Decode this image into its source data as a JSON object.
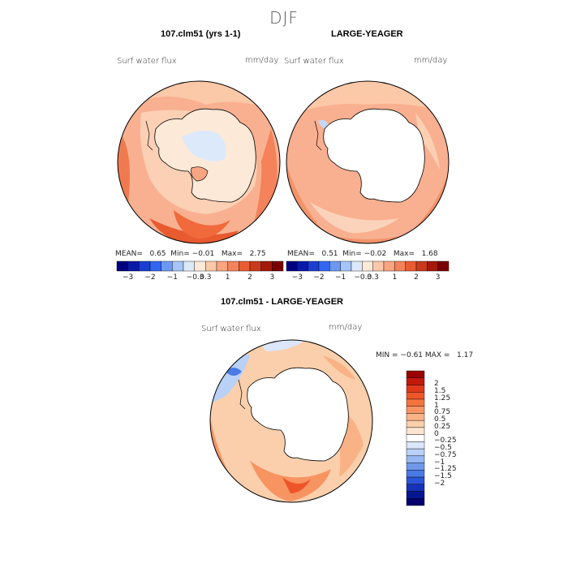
{
  "figure": {
    "title": "DJF"
  },
  "panels": [
    {
      "id": "model",
      "title": "107.clm51 (yrs 1-1)",
      "variable": "Surf water flux",
      "units": "mm/day",
      "mean_label": "MEAN=",
      "mean": "0.65",
      "min_label": "Min=",
      "min": "−0.01",
      "max_label": "Max=",
      "max": "2.75"
    },
    {
      "id": "obs",
      "title": "LARGE-YEAGER",
      "variable": "Surf water flux",
      "units": "mm/day",
      "mean_label": "MEAN=",
      "mean": "0.51",
      "min_label": "Min=",
      "min": "−0.02",
      "max_label": "Max=",
      "max": "1.68"
    },
    {
      "id": "diff",
      "title": "107.clm51 - LARGE-YEAGER",
      "variable": "Surf water flux",
      "units": "mm/day",
      "min_label": "MIN =",
      "min": "−0.61",
      "max_label": "MAX =",
      "max": "1.17"
    }
  ],
  "colorbar_top": {
    "colors": [
      "#00007f",
      "#0a1aa8",
      "#1a3fd0",
      "#3366ee",
      "#6b99f2",
      "#a6c4f7",
      "#dce9fb",
      "#fde9d8",
      "#fcc8a8",
      "#f9a582",
      "#f4825a",
      "#e85c33",
      "#c93a1c",
      "#a31a0a",
      "#7a0000"
    ],
    "tick_labels": [
      "−3",
      "−2",
      "−1",
      "−0.3",
      "0.3",
      "1",
      "2",
      "3"
    ]
  },
  "colorbar_diff": {
    "colors_top_to_bottom": [
      "#990000",
      "#c21a0a",
      "#e0391b",
      "#f0552a",
      "#f5733f",
      "#f79462",
      "#f9b285",
      "#fbcfab",
      "#fde5cf",
      "#ffffff",
      "#dbe6fb",
      "#b9d0f7",
      "#96b7f2",
      "#6f98ec",
      "#4a7ae6",
      "#2a55d8",
      "#1533b8",
      "#041690",
      "#00006e"
    ],
    "tick_labels": [
      "2",
      "1.5",
      "1.25",
      "1",
      "0.75",
      "0.5",
      "0.25",
      "0",
      "−0.25",
      "−0.5",
      "−0.75",
      "−1",
      "−1.25",
      "−1.5",
      "−2"
    ]
  }
}
